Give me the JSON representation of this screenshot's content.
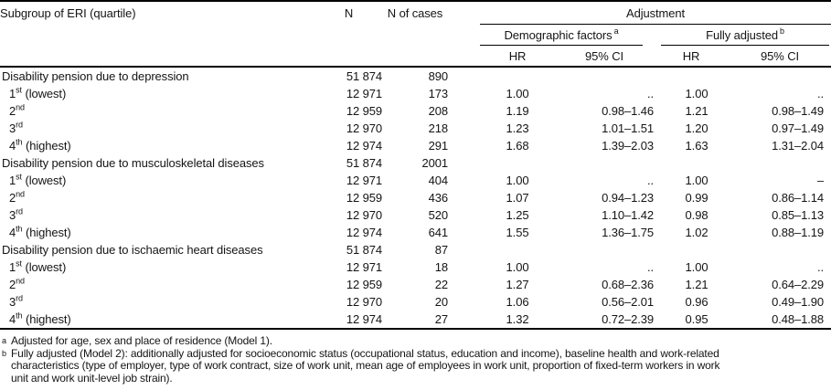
{
  "table": {
    "header": {
      "col_subgroup": "Subgroup of ERI (quartile)",
      "col_n": "N",
      "col_cases": "N of cases",
      "adjustment": "Adjustment",
      "group1": "Demographic factors",
      "group1_marker": "a",
      "group2": "Fully adjusted",
      "group2_marker": "b",
      "hr": "HR",
      "ci": "95% CI"
    },
    "rows": [
      {
        "group": true,
        "label_parts": [
          "Disability pension due to depression"
        ],
        "n": "51 874",
        "cases": "890",
        "hr1": "",
        "ci1": "",
        "hr2": "",
        "ci2": ""
      },
      {
        "group": false,
        "label_parts": [
          "1",
          {
            "sup": "st"
          },
          " (lowest)"
        ],
        "n": "12 971",
        "cases": "173",
        "hr1": "1.00",
        "ci1": "..",
        "hr2": "1.00",
        "ci2": ".."
      },
      {
        "group": false,
        "label_parts": [
          "2",
          {
            "sup": "nd"
          }
        ],
        "n": "12 959",
        "cases": "208",
        "hr1": "1.19",
        "ci1": "0.98–1.46",
        "hr2": "1.21",
        "ci2": "0.98–1.49"
      },
      {
        "group": false,
        "label_parts": [
          "3",
          {
            "sup": "rd"
          }
        ],
        "n": "12 970",
        "cases": "218",
        "hr1": "1.23",
        "ci1": "1.01–1.51",
        "hr2": "1.20",
        "ci2": "0.97–1.49"
      },
      {
        "group": false,
        "label_parts": [
          "4",
          {
            "sup": "th"
          },
          " (highest)"
        ],
        "n": "12 974",
        "cases": "291",
        "hr1": "1.68",
        "ci1": "1.39–2.03",
        "hr2": "1.63",
        "ci2": "1.31–2.04"
      },
      {
        "group": true,
        "label_parts": [
          "Disability pension due to musculoskeletal diseases"
        ],
        "n": "51 874",
        "cases": "2001",
        "hr1": "",
        "ci1": "",
        "hr2": "",
        "ci2": ""
      },
      {
        "group": false,
        "label_parts": [
          "1",
          {
            "sup": "st"
          },
          " (lowest)"
        ],
        "n": "12 971",
        "cases": "404",
        "hr1": "1.00",
        "ci1": "..",
        "hr2": "1.00",
        "ci2": "–"
      },
      {
        "group": false,
        "label_parts": [
          "2",
          {
            "sup": "nd"
          }
        ],
        "n": "12 959",
        "cases": "436",
        "hr1": "1.07",
        "ci1": "0.94–1.23",
        "hr2": "0.99",
        "ci2": "0.86–1.14"
      },
      {
        "group": false,
        "label_parts": [
          "3",
          {
            "sup": "rd"
          }
        ],
        "n": "12 970",
        "cases": "520",
        "hr1": "1.25",
        "ci1": "1.10–1.42",
        "hr2": "0.98",
        "ci2": "0.85–1.13"
      },
      {
        "group": false,
        "label_parts": [
          "4",
          {
            "sup": "th"
          },
          " (highest)"
        ],
        "n": "12 974",
        "cases": "641",
        "hr1": "1.55",
        "ci1": "1.36–1.75",
        "hr2": "1.02",
        "ci2": "0.88–1.19"
      },
      {
        "group": true,
        "label_parts": [
          "Disability pension due to ischaemic heart diseases"
        ],
        "n": "51 874",
        "cases": "87",
        "hr1": "",
        "ci1": "",
        "hr2": "",
        "ci2": ""
      },
      {
        "group": false,
        "label_parts": [
          "1",
          {
            "sup": "st"
          },
          " (lowest)"
        ],
        "n": "12 971",
        "cases": "18",
        "hr1": "1.00",
        "ci1": "..",
        "hr2": "1.00",
        "ci2": ".."
      },
      {
        "group": false,
        "label_parts": [
          "2",
          {
            "sup": "nd"
          }
        ],
        "n": "12 959",
        "cases": "22",
        "hr1": "1.27",
        "ci1": "0.68–2.36",
        "hr2": "1.21",
        "ci2": "0.64–2.29"
      },
      {
        "group": false,
        "label_parts": [
          "3",
          {
            "sup": "rd"
          }
        ],
        "n": "12 970",
        "cases": "20",
        "hr1": "1.06",
        "ci1": "0.56–2.01",
        "hr2": "0.96",
        "ci2": "0.49–1.90"
      },
      {
        "group": false,
        "label_parts": [
          "4",
          {
            "sup": "th"
          },
          " (highest)"
        ],
        "n": "12 974",
        "cases": "27",
        "hr1": "1.32",
        "ci1": "0.72–2.39",
        "hr2": "0.95",
        "ci2": "0.48–1.88"
      }
    ]
  },
  "footnotes": [
    {
      "marker": "a",
      "text": "Adjusted for age, sex and place of residence (Model 1)."
    },
    {
      "marker": "b",
      "text": "Fully adjusted (Model 2): additionally adjusted for socioeconomic status (occupational status, education and income), baseline health and work-related\ncharacteristics (type of employer, type of work contract, size of work unit, mean age of employees in work unit, proportion of fixed-term workers in work\nunit and work unit-level job strain)."
    }
  ]
}
